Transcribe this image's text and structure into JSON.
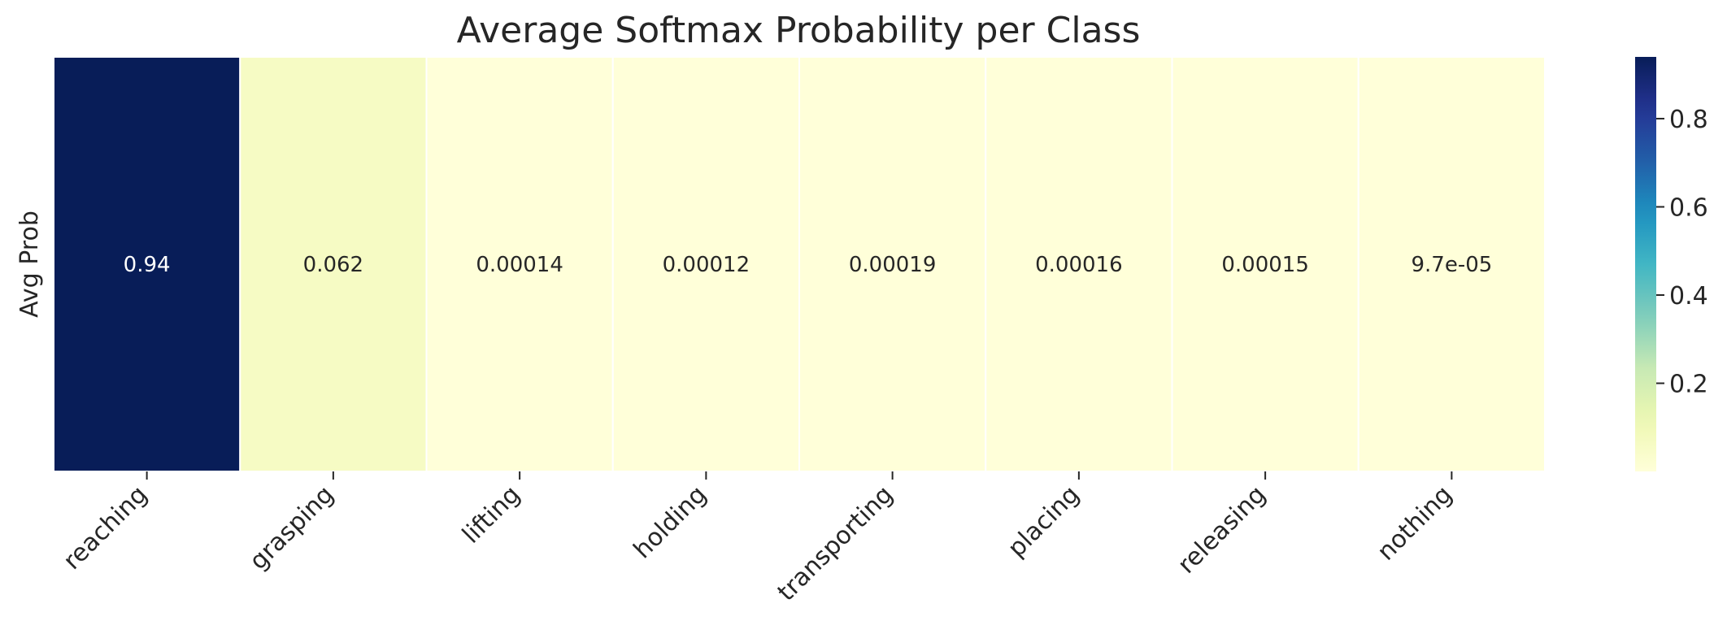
{
  "chart_data": {
    "type": "heatmap",
    "title": "Average Softmax Probability per Class",
    "xlabel": "",
    "ylabel": "",
    "row_labels": [
      "Avg Prob"
    ],
    "categories": [
      "reaching",
      "grasping",
      "lifting",
      "holding",
      "transporting",
      "placing",
      "releasing",
      "nothing"
    ],
    "values": [
      [
        0.94,
        0.062,
        0.00014,
        0.00012,
        0.00019,
        0.00016,
        0.00015,
        9.7e-05
      ]
    ],
    "annotations": [
      "0.94",
      "0.062",
      "0.00014",
      "0.00012",
      "0.00019",
      "0.00016",
      "0.00015",
      "9.7e-05"
    ],
    "colormap": "YlGnBu",
    "colorbar": {
      "range": [
        9.7e-05,
        0.94
      ],
      "ticks": [
        0.2,
        0.4,
        0.6,
        0.8
      ],
      "tick_labels": [
        "0.2",
        "0.4",
        "0.6",
        "0.8"
      ]
    },
    "cell_border_color": "#ffffff",
    "text_color_dark": "#262626",
    "text_color_light": "#ffffff"
  }
}
